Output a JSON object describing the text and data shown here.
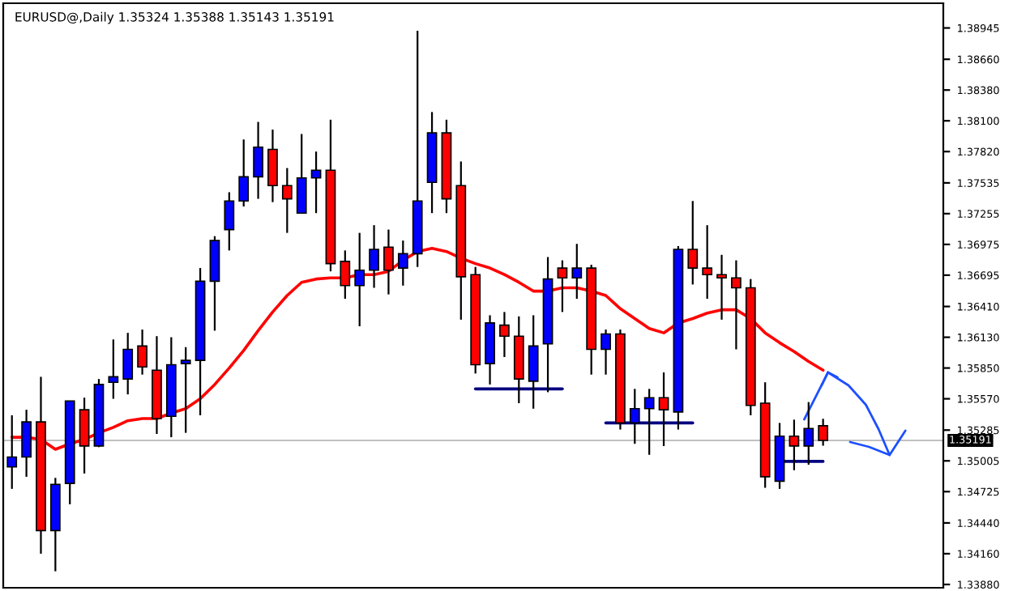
{
  "chart_data": {
    "type": "candlestick",
    "title": "EURUSD@,Daily 1.35324 1.35388 1.35143 1.35191",
    "categories": [
      null,
      null,
      null,
      null,
      null,
      null,
      null,
      null,
      null,
      null,
      null,
      null,
      null,
      null,
      null,
      null,
      null,
      null,
      null,
      null,
      null,
      null,
      null,
      null,
      null,
      null,
      null,
      null,
      null,
      null,
      null,
      null,
      null,
      null,
      null,
      null,
      null,
      null,
      null,
      null,
      null,
      null,
      null,
      null,
      null,
      null,
      null,
      null,
      null,
      null,
      null,
      null,
      null,
      null,
      null,
      null,
      null
    ],
    "ohlc": [
      [
        1.3495,
        1.3542,
        1.3475,
        1.3504
      ],
      [
        1.3504,
        1.3547,
        1.3486,
        1.3536
      ],
      [
        1.3536,
        1.3577,
        1.3416,
        1.3437
      ],
      [
        1.3437,
        1.3485,
        1.34,
        1.3479
      ],
      [
        1.348,
        1.3555,
        1.3461,
        1.3555
      ],
      [
        1.3547,
        1.3558,
        1.3489,
        1.3514
      ],
      [
        1.3514,
        1.3575,
        1.3513,
        1.357
      ],
      [
        1.3572,
        1.3611,
        1.3557,
        1.3577
      ],
      [
        1.3575,
        1.3617,
        1.3561,
        1.3602
      ],
      [
        1.3605,
        1.362,
        1.3579,
        1.3586
      ],
      [
        1.3583,
        1.3614,
        1.3525,
        1.3539
      ],
      [
        1.3541,
        1.3613,
        1.3522,
        1.3588
      ],
      [
        1.3589,
        1.3604,
        1.3526,
        1.3592
      ],
      [
        1.3592,
        1.3676,
        1.3542,
        1.3664
      ],
      [
        1.3664,
        1.3705,
        1.3619,
        1.3701
      ],
      [
        1.3711,
        1.3745,
        1.3692,
        1.3737
      ],
      [
        1.3737,
        1.3793,
        1.3732,
        1.3759
      ],
      [
        1.3759,
        1.3809,
        1.3739,
        1.3786
      ],
      [
        1.3784,
        1.3802,
        1.3736,
        1.3751
      ],
      [
        1.3751,
        1.3767,
        1.3708,
        1.3739
      ],
      [
        1.3726,
        1.3798,
        1.3726,
        1.3758
      ],
      [
        1.3758,
        1.3782,
        1.3726,
        1.3765
      ],
      [
        1.3765,
        1.3811,
        1.3673,
        1.368
      ],
      [
        1.3682,
        1.3692,
        1.3648,
        1.366
      ],
      [
        1.366,
        1.3708,
        1.3623,
        1.3674
      ],
      [
        1.3674,
        1.3715,
        1.3658,
        1.3693
      ],
      [
        1.3695,
        1.3711,
        1.3652,
        1.3674
      ],
      [
        1.3676,
        1.3701,
        1.366,
        1.3689
      ],
      [
        1.3689,
        1.3892,
        1.3677,
        1.3737
      ],
      [
        1.3754,
        1.3818,
        1.3726,
        1.3799
      ],
      [
        1.3799,
        1.3811,
        1.3726,
        1.3739
      ],
      [
        1.3751,
        1.3773,
        1.3629,
        1.3668
      ],
      [
        1.367,
        1.3677,
        1.358,
        1.3588
      ],
      [
        1.3589,
        1.3633,
        1.357,
        1.3626
      ],
      [
        1.3624,
        1.3636,
        1.3595,
        1.3614
      ],
      [
        1.3614,
        1.3632,
        1.3553,
        1.3575
      ],
      [
        1.3573,
        1.3633,
        1.3548,
        1.3605
      ],
      [
        1.3607,
        1.3686,
        1.3563,
        1.3666
      ],
      [
        1.3676,
        1.3683,
        1.3636,
        1.3667
      ],
      [
        1.3667,
        1.3698,
        1.3648,
        1.3676
      ],
      [
        1.3676,
        1.3679,
        1.3579,
        1.3602
      ],
      [
        1.3602,
        1.362,
        1.3579,
        1.3616
      ],
      [
        1.3616,
        1.362,
        1.3529,
        1.3535
      ],
      [
        1.3535,
        1.3566,
        1.3516,
        1.3548
      ],
      [
        1.3548,
        1.3566,
        1.3506,
        1.3558
      ],
      [
        1.3558,
        1.3581,
        1.3514,
        1.3547
      ],
      [
        1.3545,
        1.3696,
        1.3529,
        1.3693
      ],
      [
        1.3693,
        1.3737,
        1.3661,
        1.3676
      ],
      [
        1.3676,
        1.3715,
        1.3648,
        1.367
      ],
      [
        1.367,
        1.3688,
        1.3629,
        1.3667
      ],
      [
        1.3667,
        1.3683,
        1.3602,
        1.3658
      ],
      [
        1.3658,
        1.3666,
        1.3542,
        1.3551
      ],
      [
        1.3553,
        1.3572,
        1.3476,
        1.3486
      ],
      [
        1.3482,
        1.3535,
        1.3475,
        1.3523
      ],
      [
        1.3523,
        1.3538,
        1.3492,
        1.3514
      ],
      [
        1.3514,
        1.3554,
        1.3497,
        1.353
      ],
      [
        1.35324,
        1.35388,
        1.35143,
        1.35191
      ]
    ],
    "colors": [
      "#0000ff",
      "#0000ff",
      "#ff0000",
      "#0000ff",
      "#0000ff",
      "#ff0000",
      "#0000ff",
      "#0000ff",
      "#0000ff",
      "#ff0000",
      "#ff0000",
      "#0000ff",
      "#0000ff",
      "#0000ff",
      "#0000ff",
      "#0000ff",
      "#0000ff",
      "#0000ff",
      "#ff0000",
      "#ff0000",
      "#0000ff",
      "#0000ff",
      "#ff0000",
      "#ff0000",
      "#0000ff",
      "#0000ff",
      "#ff0000",
      "#0000ff",
      "#0000ff",
      "#0000ff",
      "#ff0000",
      "#ff0000",
      "#ff0000",
      "#0000ff",
      "#ff0000",
      "#ff0000",
      "#0000ff",
      "#0000ff",
      "#ff0000",
      "#0000ff",
      "#ff0000",
      "#0000ff",
      "#ff0000",
      "#0000ff",
      "#0000ff",
      "#ff0000",
      "#0000ff",
      "#ff0000",
      "#ff0000",
      "#ff0000",
      "#ff0000",
      "#ff0000",
      "#ff0000",
      "#0000ff",
      "#ff0000",
      "#0000ff",
      "#ff0000"
    ],
    "series": [
      {
        "type": "line",
        "color": "#ff0000",
        "values": [
          1.3522,
          1.3522,
          1.352,
          1.3511,
          1.3516,
          1.352,
          1.3526,
          1.3531,
          1.3537,
          1.3539,
          1.3539,
          1.3544,
          1.3548,
          1.3557,
          1.357,
          1.3585,
          1.3601,
          1.3619,
          1.3636,
          1.3651,
          1.3663,
          1.3666,
          1.3667,
          1.3667,
          1.367,
          1.367,
          1.3673,
          1.3683,
          1.3691,
          1.3694,
          1.3691,
          1.3685,
          1.368,
          1.3676,
          1.367,
          1.3663,
          1.3655,
          1.3655,
          1.3658,
          1.3658,
          1.3655,
          1.3651,
          1.3639,
          1.363,
          1.3621,
          1.3617,
          1.3626,
          1.363,
          1.3635,
          1.3638,
          1.3638,
          1.363,
          1.3617,
          1.3608,
          1.36,
          1.3591,
          1.3583
        ]
      },
      {
        "type": "line",
        "color": "#000080",
        "values": [
          null,
          null,
          null,
          null,
          null,
          null,
          null,
          null,
          null,
          null,
          null,
          null,
          null,
          null,
          null,
          null,
          null,
          null,
          null,
          null,
          null,
          null,
          null,
          null,
          null,
          null,
          null,
          null,
          null,
          null,
          null,
          null,
          1.3566,
          1.3566,
          1.3566,
          1.3566,
          1.3566,
          1.3566,
          1.3566,
          null,
          null,
          null,
          null,
          null,
          null,
          null,
          null,
          null,
          null,
          null,
          null,
          null,
          null,
          null,
          null,
          null,
          null
        ]
      },
      {
        "type": "line",
        "color": "#000080",
        "values": [
          null,
          null,
          null,
          null,
          null,
          null,
          null,
          null,
          null,
          null,
          null,
          null,
          null,
          null,
          null,
          null,
          null,
          null,
          null,
          null,
          null,
          null,
          null,
          null,
          null,
          null,
          null,
          null,
          null,
          null,
          null,
          null,
          null,
          null,
          null,
          null,
          null,
          null,
          null,
          null,
          null,
          1.3535,
          1.3535,
          1.3535,
          1.3535,
          1.3535,
          1.3535,
          1.3535,
          null,
          null,
          null,
          null,
          null,
          null,
          null,
          null,
          null
        ]
      },
      {
        "type": "line",
        "color": "#000080",
        "values": [
          null,
          null,
          null,
          null,
          null,
          null,
          null,
          null,
          null,
          null,
          null,
          null,
          null,
          null,
          null,
          null,
          null,
          null,
          null,
          null,
          null,
          null,
          null,
          null,
          null,
          null,
          null,
          null,
          null,
          null,
          null,
          null,
          null,
          null,
          null,
          null,
          null,
          null,
          null,
          null,
          null,
          null,
          null,
          null,
          null,
          null,
          null,
          null,
          null,
          null,
          null,
          null,
          null,
          1.35,
          1.35,
          1.35,
          1.35
        ]
      }
    ],
    "ylim": [
      1.3385,
      1.3917
    ],
    "yticks": [
      1.38945,
      {
        "value": 1.3866,
        "label": "1.38660"
      },
      {
        "value": 1.3838,
        "label": "1.38380"
      },
      {
        "value": 1.381,
        "label": "1.38100"
      },
      {
        "value": 1.3782,
        "label": "1.37820"
      },
      1.37535,
      1.37255,
      1.36975,
      1.36695,
      {
        "value": 1.3641,
        "label": "1.36410"
      },
      {
        "value": 1.3613,
        "label": "1.36130"
      },
      {
        "value": 1.3585,
        "label": "1.35850"
      },
      {
        "value": 1.3557,
        "label": "1.35570"
      },
      1.35285,
      1.35005,
      1.34725,
      {
        "value": 1.3444,
        "label": "1.34440"
      },
      {
        "value": 1.3416,
        "label": "1.34160"
      },
      {
        "value": 1.3388,
        "label": "1.33880"
      }
    ],
    "ref_lines": [
      {
        "axis": "y",
        "value": 1.35191,
        "label": "1.35191",
        "color": "#c0c0c0"
      }
    ],
    "tick_labels": "y",
    "grid": false
  }
}
